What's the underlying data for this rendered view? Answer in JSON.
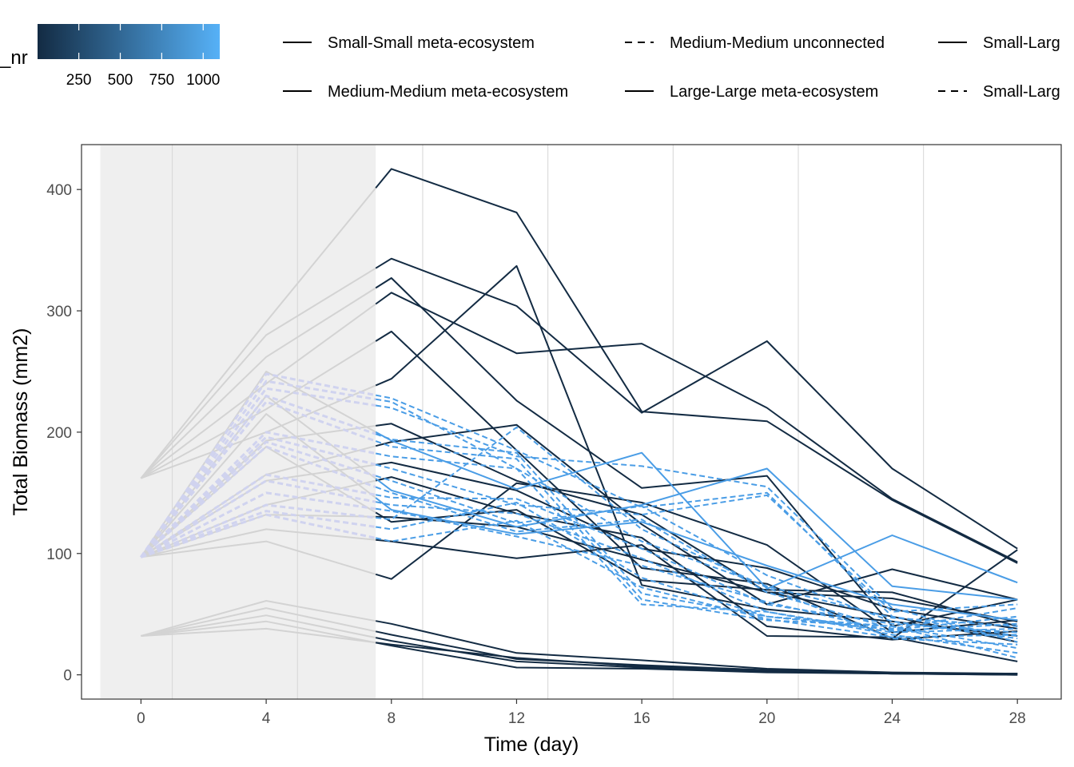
{
  "chart_data": {
    "type": "line",
    "xlabel": "Time (day)",
    "ylabel": "Total Biomass (mm2)",
    "xlim": [
      -1.9,
      29.4
    ],
    "ylim": [
      -20,
      437
    ],
    "x_ticks": [
      0,
      4,
      8,
      12,
      16,
      20,
      24,
      28
    ],
    "y_ticks": [
      0,
      100,
      200,
      300,
      400
    ],
    "grid": "vertical minor lines only",
    "shaded_region": {
      "from": -1.3,
      "to": 7.5,
      "color": "#efefef"
    },
    "colorbar": {
      "title": "_nr",
      "ticks": [
        250,
        500,
        750,
        1000
      ],
      "range": [
        1,
        1100
      ],
      "color_low": "#132b43",
      "color_high": "#56b1f7"
    },
    "legend": {
      "placement": "top",
      "entries": [
        {
          "label": "Small-Small meta-ecosystem",
          "linetype": "solid"
        },
        {
          "label": "Medium-Medium unconnected",
          "linetype": "dashed"
        },
        {
          "label": "Small-Larg",
          "linetype": "solid"
        },
        {
          "label": "Medium-Medium meta-ecosystem",
          "linetype": "solid"
        },
        {
          "label": "Large-Large meta-ecosystem",
          "linetype": "solid"
        },
        {
          "label": "Small-Larg",
          "linetype": "dashed"
        }
      ]
    },
    "pre_period_color": "#d3d3d3",
    "pre_dashed_color": "#d0d3ef",
    "x": [
      0,
      4,
      8,
      12,
      16,
      20,
      24,
      28
    ],
    "series": [
      {
        "type": "dark",
        "values": [
          162,
          291,
          417,
          381,
          217,
          209,
          144,
          92
        ]
      },
      {
        "type": "dark",
        "values": [
          162,
          280,
          343,
          304,
          216,
          275,
          170,
          104
        ]
      },
      {
        "type": "dark",
        "values": [
          162,
          262,
          327,
          226,
          154,
          164,
          40,
          62
        ]
      },
      {
        "type": "dark",
        "values": [
          162,
          240,
          315,
          265,
          273,
          220,
          145,
          93
        ]
      },
      {
        "type": "dark",
        "values": [
          162,
          219,
          283,
          185,
          88,
          75,
          30,
          103
        ]
      },
      {
        "type": "dark",
        "values": [
          162,
          200,
          244,
          337,
          74,
          54,
          44,
          32
        ]
      },
      {
        "type": "dark",
        "values": [
          97,
          193,
          207,
          160,
          132,
          68,
          63,
          44
        ]
      },
      {
        "type": "dark",
        "values": [
          97,
          165,
          192,
          206,
          124,
          58,
          87,
          62
        ]
      },
      {
        "type": "dark",
        "values": [
          97,
          160,
          175,
          152,
          104,
          88,
          54,
          38
        ]
      },
      {
        "type": "dark",
        "values": [
          97,
          140,
          163,
          133,
          113,
          40,
          29,
          36
        ]
      },
      {
        "type": "dark",
        "values": [
          97,
          132,
          130,
          122,
          95,
          68,
          48,
          27
        ]
      },
      {
        "type": "dark",
        "values": [
          97,
          120,
          110,
          96,
          107,
          32,
          31,
          11
        ]
      },
      {
        "type": "dark",
        "values": [
          97,
          110,
          79,
          158,
          142,
          107,
          35,
          45
        ]
      },
      {
        "type": "dark",
        "values": [
          97,
          188,
          126,
          136,
          78,
          70,
          68,
          40
        ]
      },
      {
        "type": "dark",
        "values": [
          32,
          61,
          42,
          18,
          12,
          5,
          2,
          1
        ]
      },
      {
        "type": "dark",
        "values": [
          32,
          55,
          33,
          13,
          8,
          4,
          1,
          1
        ]
      },
      {
        "type": "dark",
        "values": [
          32,
          49,
          28,
          11,
          6,
          3,
          1,
          0
        ]
      },
      {
        "type": "dark",
        "values": [
          32,
          44,
          24,
          6,
          5,
          2,
          1,
          0
        ]
      },
      {
        "type": "dark",
        "values": [
          32,
          38,
          25,
          14,
          7,
          3,
          1,
          1
        ]
      },
      {
        "type": "light",
        "values": [
          97,
          250,
          193,
          153,
          183,
          71,
          115,
          76
        ]
      },
      {
        "type": "light",
        "values": [
          97,
          230,
          152,
          122,
          140,
          170,
          73,
          62
        ]
      },
      {
        "type": "light",
        "values": [
          97,
          215,
          136,
          116,
          126,
          90,
          58,
          45
        ]
      },
      {
        "type": "light-dash",
        "values": [
          97,
          248,
          228,
          185,
          138,
          150,
          48,
          32
        ]
      },
      {
        "type": "light-dash",
        "values": [
          97,
          242,
          225,
          170,
          110,
          73,
          47,
          40
        ]
      },
      {
        "type": "light-dash",
        "values": [
          97,
          236,
          220,
          180,
          172,
          155,
          55,
          27
        ]
      },
      {
        "type": "light-dash",
        "values": [
          97,
          230,
          194,
          183,
          67,
          48,
          37,
          48
        ]
      },
      {
        "type": "light-dash",
        "values": [
          97,
          225,
          188,
          178,
          62,
          45,
          40,
          22
        ]
      },
      {
        "type": "light-dash",
        "values": [
          97,
          200,
          180,
          170,
          58,
          52,
          35,
          38
        ]
      },
      {
        "type": "light-dash",
        "values": [
          97,
          196,
          170,
          140,
          132,
          148,
          52,
          58
        ]
      },
      {
        "type": "light-dash",
        "values": [
          97,
          192,
          160,
          125,
          139,
          82,
          44,
          30
        ]
      },
      {
        "type": "light-dash",
        "values": [
          97,
          188,
          150,
          118,
          128,
          68,
          38,
          55
        ]
      },
      {
        "type": "light-dash",
        "values": [
          97,
          165,
          146,
          145,
          104,
          58,
          42,
          35
        ]
      },
      {
        "type": "light-dash",
        "values": [
          97,
          160,
          140,
          133,
          96,
          52,
          33,
          18
        ]
      },
      {
        "type": "light-dash",
        "values": [
          97,
          150,
          135,
          114,
          90,
          60,
          36,
          42
        ]
      },
      {
        "type": "light-dash",
        "values": [
          97,
          140,
          128,
          204,
          120,
          72,
          30,
          25
        ]
      },
      {
        "type": "light-dash",
        "values": [
          97,
          135,
          120,
          142,
          80,
          48,
          40,
          14
        ]
      },
      {
        "type": "light-dash",
        "values": [
          97,
          132,
          110,
          127,
          72,
          46,
          31,
          33
        ]
      }
    ]
  }
}
